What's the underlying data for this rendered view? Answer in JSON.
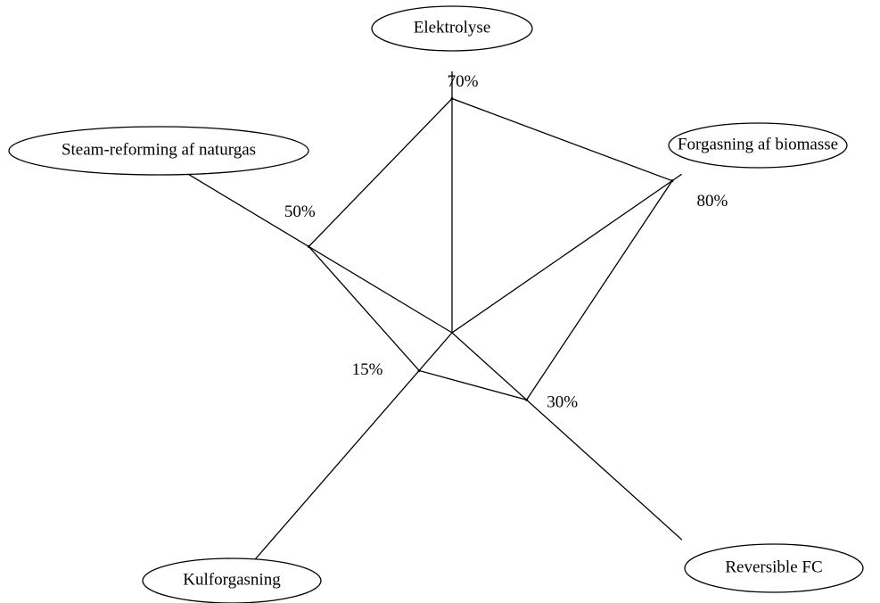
{
  "chart_data": {
    "type": "radar",
    "categories": [
      "Elektrolyse",
      "Forgasning af biomasse",
      "Reversible FC",
      "Kulforgasning",
      "Steam-reforming af naturgas"
    ],
    "values": [
      70,
      80,
      30,
      15,
      50
    ],
    "value_labels": [
      "70%",
      "80%",
      "30%",
      "15%",
      "50%"
    ],
    "color": "#000000"
  }
}
